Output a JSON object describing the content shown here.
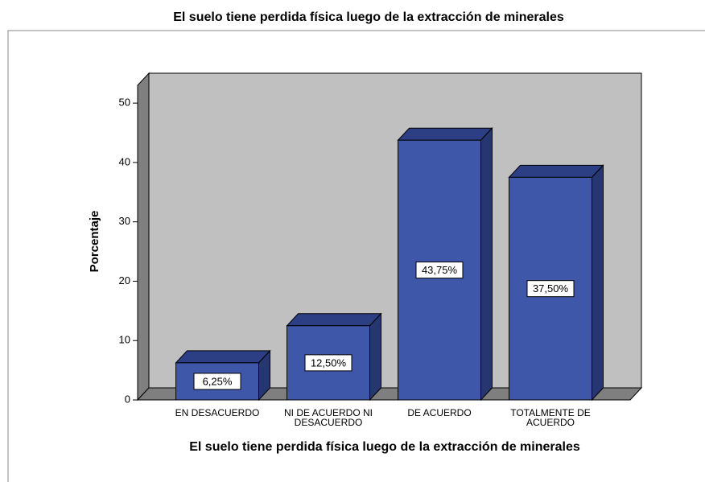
{
  "chart_data": {
    "type": "bar3d",
    "title": "El suelo tiene perdida física luego de la extracción de minerales",
    "x_label": "El suelo tiene perdida física luego de la extracción de minerales",
    "y_label": "Porcentaje",
    "categories": [
      "EN DESACUERDO",
      "NI DE ACUERDO NI DESACUERDO",
      "DE ACUERDO",
      "TOTALMENTE DE ACUERDO"
    ],
    "values": [
      6.25,
      12.5,
      43.75,
      37.5
    ],
    "value_labels": [
      "6,25%",
      "12,50%",
      "43,75%",
      "37,50%"
    ],
    "color": "#3f57a8",
    "ylim": [
      0,
      53
    ],
    "yticks": [
      0,
      10,
      20,
      30,
      40,
      50
    ]
  }
}
